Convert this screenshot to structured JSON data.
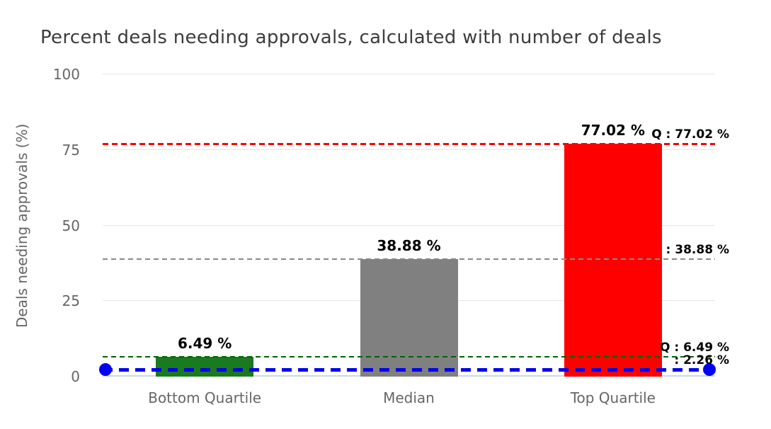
{
  "title": "Percent deals needing approvals, calculated with number of deals",
  "chart_data": {
    "type": "bar",
    "title": "Percent deals needing approvals, calculated with number of deals",
    "ylabel": "Deals needing approvals (%)",
    "xlabel": "",
    "ylim": [
      0,
      100
    ],
    "yticks": [
      0,
      25,
      50,
      75,
      100
    ],
    "grid": true,
    "legend_position": "none",
    "categories": [
      "Bottom Quartile",
      "Median",
      "Top Quartile"
    ],
    "values": [
      6.49,
      38.88,
      77.02
    ],
    "value_labels": [
      "6.49 %",
      "38.88 %",
      "77.02 %"
    ],
    "bar_colors": [
      "#1a7a1e",
      "#808080",
      "#ff0000"
    ],
    "reference_lines": [
      {
        "value": 77.02,
        "label": "Q : 77.02 %",
        "color": "#ff0000",
        "thickness": 3,
        "endpoints": false
      },
      {
        "value": 38.88,
        "label": ": 38.88 %",
        "color": "#888888",
        "thickness": 2,
        "endpoints": false
      },
      {
        "value": 6.49,
        "label": "Q : 6.49 %",
        "color": "#006400",
        "thickness": 2,
        "endpoints": false
      },
      {
        "value": 2.26,
        "label": ": 2.26 %",
        "color": "#0000ee",
        "thickness": 5,
        "endpoints": true
      }
    ],
    "colors": {
      "grid": "#e6e6e6",
      "axis_line": "#ccd6eb",
      "axis_text": "#666666",
      "title_text": "#3c3c3c",
      "value_label_text": "#000000"
    }
  }
}
